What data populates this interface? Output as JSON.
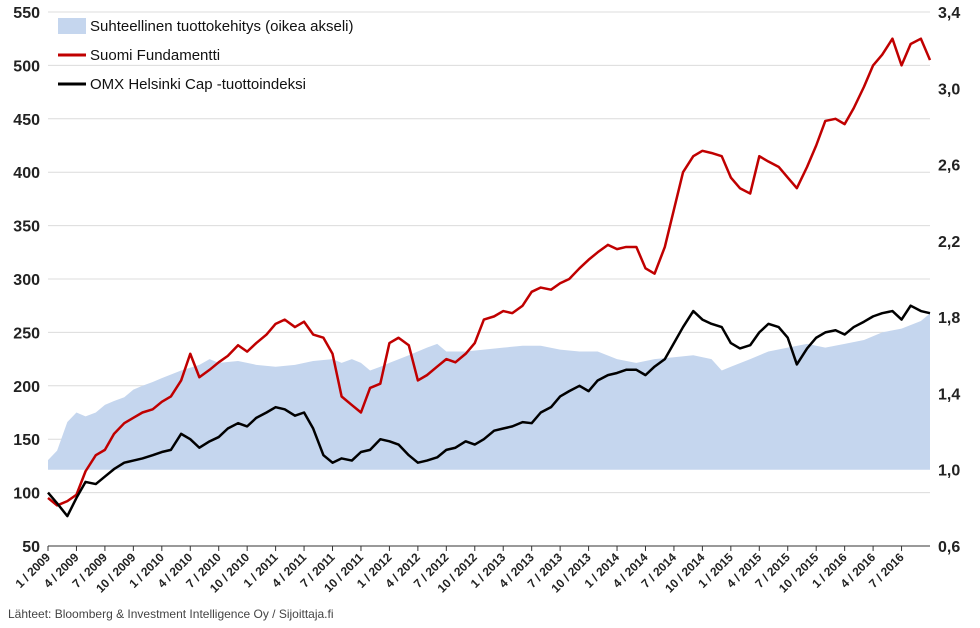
{
  "chart_data": {
    "type": "line",
    "source": "Lähteet: Bloomberg & Investment Intelligence Oy / Sijoittaja.fi",
    "yleft": {
      "ticks": [
        50,
        100,
        150,
        200,
        250,
        300,
        350,
        400,
        450,
        500,
        550
      ],
      "range": [
        50,
        550
      ]
    },
    "yright": {
      "ticks": [
        "0,6",
        "1,0",
        "1,4",
        "1,8",
        "2,2",
        "2,6",
        "3,0",
        "3,4"
      ],
      "values": [
        0.6,
        1.0,
        1.4,
        1.8,
        2.2,
        2.6,
        3.0,
        3.4
      ],
      "range": [
        0.6,
        3.4
      ]
    },
    "x_range": [
      2009.0,
      2016.75
    ],
    "x_labels": [
      "1 / 2009",
      "4 / 2009",
      "7 / 2009",
      "10 / 2009",
      "1 / 2010",
      "4 / 2010",
      "7 / 2010",
      "10 / 2010",
      "1 / 2011",
      "4 / 2011",
      "7 / 2011",
      "10 / 2011",
      "1 / 2012",
      "4 / 2012",
      "7 / 2012",
      "10 / 2012",
      "1 / 2013",
      "4 / 2013",
      "7 / 2013",
      "10 / 2013",
      "1 / 2014",
      "4 / 2014",
      "7 / 2014",
      "10 / 2014",
      "1 / 2015",
      "4 / 2015",
      "7 / 2015",
      "10 / 2015",
      "1 / 2016",
      "4 / 2016",
      "7 / 2016"
    ],
    "grid": true,
    "legend_position": "top-left",
    "series": [
      {
        "name": "Suhteellinen tuottokehitys (oikea akseli)",
        "axis": "right",
        "style": "area",
        "color": "#c5d6ee",
        "x": [
          2009.0,
          2009.08,
          2009.17,
          2009.25,
          2009.33,
          2009.42,
          2009.5,
          2009.58,
          2009.67,
          2009.75,
          2009.83,
          2009.92,
          2010.0,
          2010.17,
          2010.33,
          2010.42,
          2010.5,
          2010.67,
          2010.83,
          2011.0,
          2011.17,
          2011.33,
          2011.5,
          2011.58,
          2011.67,
          2011.75,
          2011.83,
          2011.92,
          2012.0,
          2012.17,
          2012.33,
          2012.42,
          2012.5,
          2012.67,
          2012.83,
          2013.0,
          2013.17,
          2013.33,
          2013.5,
          2013.67,
          2013.83,
          2014.0,
          2014.17,
          2014.33,
          2014.5,
          2014.67,
          2014.83,
          2014.92,
          2015.0,
          2015.17,
          2015.33,
          2015.5,
          2015.67,
          2015.83,
          2016.0,
          2016.17,
          2016.33,
          2016.5,
          2016.67,
          2016.75
        ],
        "values": [
          1.05,
          1.1,
          1.25,
          1.3,
          1.28,
          1.3,
          1.34,
          1.36,
          1.38,
          1.42,
          1.44,
          1.46,
          1.48,
          1.52,
          1.55,
          1.58,
          1.56,
          1.57,
          1.55,
          1.54,
          1.55,
          1.57,
          1.58,
          1.56,
          1.58,
          1.56,
          1.52,
          1.54,
          1.56,
          1.6,
          1.64,
          1.66,
          1.62,
          1.62,
          1.63,
          1.64,
          1.65,
          1.65,
          1.63,
          1.62,
          1.62,
          1.58,
          1.56,
          1.58,
          1.59,
          1.6,
          1.58,
          1.52,
          1.54,
          1.58,
          1.62,
          1.64,
          1.66,
          1.64,
          1.66,
          1.68,
          1.72,
          1.74,
          1.78,
          1.82
        ]
      },
      {
        "name": "Suomi Fundamentti",
        "axis": "left",
        "style": "line",
        "color": "#c00000",
        "x": [
          2009.0,
          2009.08,
          2009.17,
          2009.25,
          2009.33,
          2009.42,
          2009.5,
          2009.58,
          2009.67,
          2009.75,
          2009.83,
          2009.92,
          2010.0,
          2010.08,
          2010.17,
          2010.25,
          2010.33,
          2010.42,
          2010.5,
          2010.58,
          2010.67,
          2010.75,
          2010.83,
          2010.92,
          2011.0,
          2011.08,
          2011.17,
          2011.25,
          2011.33,
          2011.42,
          2011.5,
          2011.58,
          2011.67,
          2011.75,
          2011.83,
          2011.92,
          2012.0,
          2012.08,
          2012.17,
          2012.25,
          2012.33,
          2012.42,
          2012.5,
          2012.58,
          2012.67,
          2012.75,
          2012.83,
          2012.92,
          2013.0,
          2013.08,
          2013.17,
          2013.25,
          2013.33,
          2013.42,
          2013.5,
          2013.58,
          2013.67,
          2013.75,
          2013.83,
          2013.92,
          2014.0,
          2014.08,
          2014.17,
          2014.25,
          2014.33,
          2014.42,
          2014.5,
          2014.58,
          2014.67,
          2014.75,
          2014.83,
          2014.92,
          2015.0,
          2015.08,
          2015.17,
          2015.25,
          2015.33,
          2015.42,
          2015.5,
          2015.58,
          2015.67,
          2015.75,
          2015.83,
          2015.92,
          2016.0,
          2016.08,
          2016.17,
          2016.25,
          2016.33,
          2016.42,
          2016.5,
          2016.58,
          2016.67,
          2016.75
        ],
        "values": [
          95,
          88,
          92,
          98,
          120,
          135,
          140,
          155,
          165,
          170,
          175,
          178,
          185,
          190,
          205,
          230,
          208,
          215,
          222,
          228,
          238,
          232,
          240,
          248,
          258,
          262,
          255,
          260,
          248,
          245,
          230,
          190,
          182,
          175,
          198,
          202,
          240,
          245,
          238,
          205,
          210,
          218,
          225,
          222,
          230,
          240,
          262,
          265,
          270,
          268,
          275,
          288,
          292,
          290,
          296,
          300,
          310,
          318,
          325,
          332,
          328,
          330,
          330,
          310,
          305,
          330,
          365,
          400,
          415,
          420,
          418,
          415,
          395,
          385,
          380,
          415,
          410,
          405,
          395,
          385,
          405,
          425,
          448,
          450,
          445,
          460,
          480,
          500,
          510,
          525,
          500,
          520,
          525,
          505
        ],
        "_note_pad": null
      },
      {
        "name": "OMX Helsinki Cap -tuottoindeksi",
        "axis": "left",
        "style": "line",
        "color": "#000000",
        "x": [
          2009.0,
          2009.08,
          2009.17,
          2009.25,
          2009.33,
          2009.42,
          2009.5,
          2009.58,
          2009.67,
          2009.75,
          2009.83,
          2009.92,
          2010.0,
          2010.08,
          2010.17,
          2010.25,
          2010.33,
          2010.42,
          2010.5,
          2010.58,
          2010.67,
          2010.75,
          2010.83,
          2010.92,
          2011.0,
          2011.08,
          2011.17,
          2011.25,
          2011.33,
          2011.42,
          2011.5,
          2011.58,
          2011.67,
          2011.75,
          2011.83,
          2011.92,
          2012.0,
          2012.08,
          2012.17,
          2012.25,
          2012.33,
          2012.42,
          2012.5,
          2012.58,
          2012.67,
          2012.75,
          2012.83,
          2012.92,
          2013.0,
          2013.08,
          2013.17,
          2013.25,
          2013.33,
          2013.42,
          2013.5,
          2013.58,
          2013.67,
          2013.75,
          2013.83,
          2013.92,
          2014.0,
          2014.08,
          2014.17,
          2014.25,
          2014.33,
          2014.42,
          2014.5,
          2014.58,
          2014.67,
          2014.75,
          2014.83,
          2014.92,
          2015.0,
          2015.08,
          2015.17,
          2015.25,
          2015.33,
          2015.42,
          2015.5,
          2015.58,
          2015.67,
          2015.75,
          2015.83,
          2015.92,
          2016.0,
          2016.08,
          2016.17,
          2016.25,
          2016.33,
          2016.42,
          2016.5,
          2016.58,
          2016.67,
          2016.75
        ],
        "values": [
          100,
          90,
          78,
          95,
          110,
          108,
          115,
          122,
          128,
          130,
          132,
          135,
          138,
          140,
          155,
          150,
          142,
          148,
          152,
          160,
          165,
          162,
          170,
          175,
          180,
          178,
          172,
          175,
          160,
          135,
          128,
          132,
          130,
          138,
          140,
          150,
          148,
          145,
          135,
          128,
          130,
          133,
          140,
          142,
          148,
          145,
          150,
          158,
          160,
          162,
          166,
          165,
          175,
          180,
          190,
          195,
          200,
          195,
          205,
          210,
          212,
          215,
          215,
          210,
          218,
          225,
          240,
          255,
          270,
          262,
          258,
          255,
          240,
          235,
          238,
          250,
          258,
          255,
          245,
          220,
          235,
          245,
          250,
          252,
          248,
          255,
          260,
          265,
          268,
          270,
          262,
          275,
          270,
          268
        ]
      }
    ]
  }
}
